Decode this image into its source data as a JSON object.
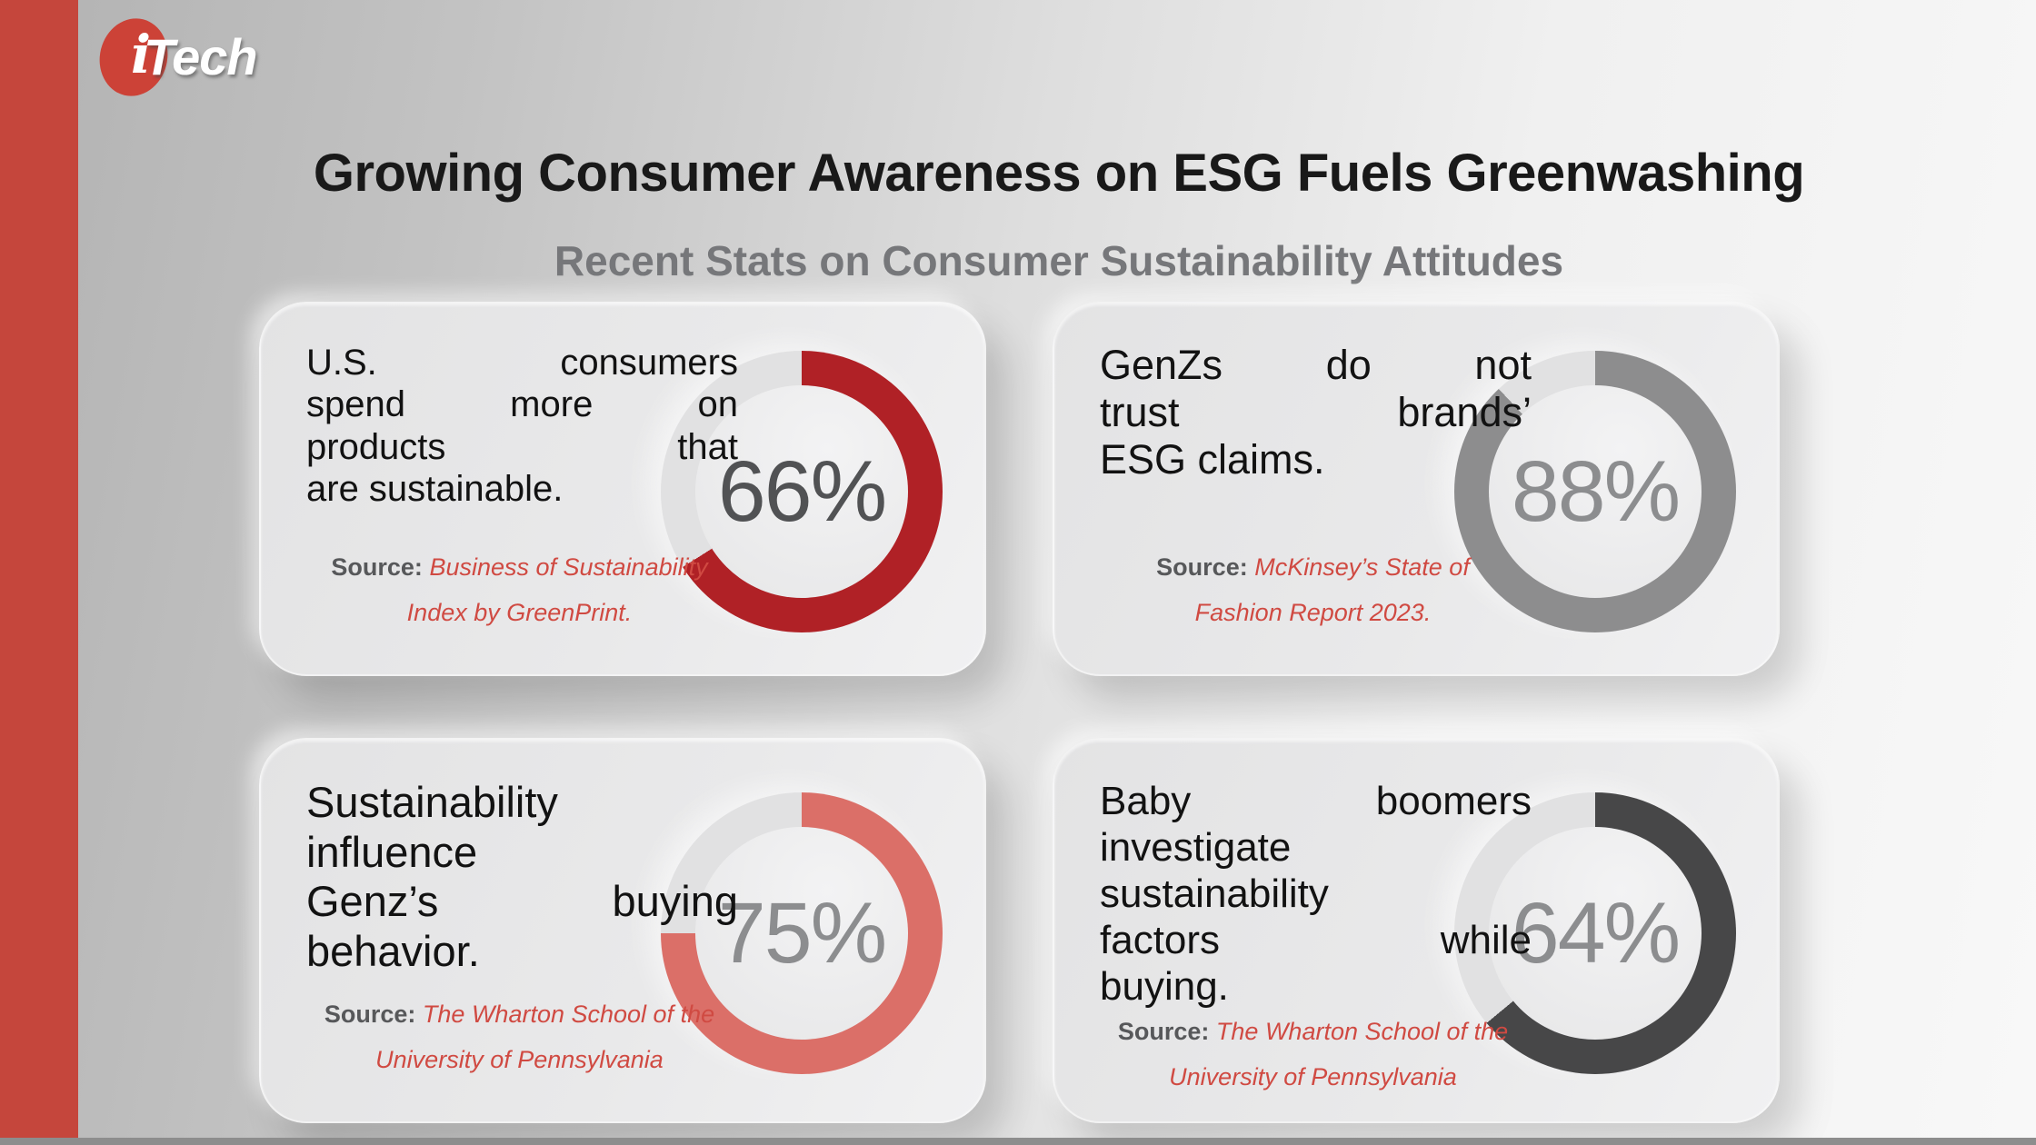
{
  "colors": {
    "accent_red": "#c5463c",
    "track": "#e1e1e2",
    "source_red": "#d04a42",
    "bottom_strip": "#8d8d8d"
  },
  "logo": {
    "symbol_letter": "i",
    "text": "Tech"
  },
  "header": {
    "title": "Growing Consumer Awareness on ESG Fuels Greenwashing",
    "subtitle": "Recent Stats on Consumer Sustainability Attitudes"
  },
  "cards": [
    {
      "statement_lines": [
        "U.S. consumers",
        "spend more on",
        "products that",
        "are sustainable."
      ],
      "source_label": "Source:",
      "source_lines": [
        "Business of Sustainability",
        "Index by GreenPrint."
      ],
      "percent": 66,
      "percent_label": "66%",
      "ring_color": "#b02126",
      "number_color": "#515254"
    },
    {
      "statement_lines": [
        "GenZs do not",
        "trust brands’",
        "ESG claims."
      ],
      "source_label": "Source:",
      "source_lines": [
        "McKinsey’s State of",
        "Fashion Report 2023."
      ],
      "percent": 88,
      "percent_label": "88%",
      "ring_color": "#8d8d8e",
      "number_color": "#8c8d8f"
    },
    {
      "statement_lines": [
        "Sustainability",
        "influence",
        "Genz’s buying",
        "behavior."
      ],
      "source_label": "Source:",
      "source_lines": [
        "The Wharton School of the",
        "University of Pennsylvania"
      ],
      "percent": 75,
      "percent_label": "75%",
      "ring_color": "#db6f68",
      "number_color": "#8c8d8f"
    },
    {
      "statement_lines": [
        "Baby boomers",
        "investigate",
        "sustainability",
        "factors while",
        "buying."
      ],
      "source_label": "Source:",
      "source_lines": [
        "The Wharton School of the",
        "University of Pennsylvania"
      ],
      "percent": 64,
      "percent_label": "64%",
      "ring_color": "#474748",
      "number_color": "#8c8d8f"
    }
  ],
  "chart_data": [
    {
      "type": "pie",
      "style": "donut",
      "label": "U.S. consumers spend more on products that are sustainable.",
      "values": [
        66,
        34
      ],
      "unit": "%",
      "color": "#b02126",
      "start_angle": "top",
      "direction": "clockwise",
      "source": "Business of Sustainability Index by GreenPrint."
    },
    {
      "type": "pie",
      "style": "donut",
      "label": "GenZs do not trust brands’ ESG claims.",
      "values": [
        88,
        12
      ],
      "unit": "%",
      "color": "#8d8d8e",
      "start_angle": "top",
      "direction": "clockwise",
      "source": "McKinsey’s State of Fashion Report 2023."
    },
    {
      "type": "pie",
      "style": "donut",
      "label": "Sustainability influence Genz’s buying behavior.",
      "values": [
        75,
        25
      ],
      "unit": "%",
      "color": "#db6f68",
      "start_angle": "top",
      "direction": "clockwise",
      "source": "The Wharton School of the University of Pennsylvania"
    },
    {
      "type": "pie",
      "style": "donut",
      "label": "Baby boomers investigate sustainability factors while buying.",
      "values": [
        64,
        36
      ],
      "unit": "%",
      "color": "#474748",
      "start_angle": "top",
      "direction": "clockwise",
      "source": "The Wharton School of the University of Pennsylvania"
    }
  ]
}
